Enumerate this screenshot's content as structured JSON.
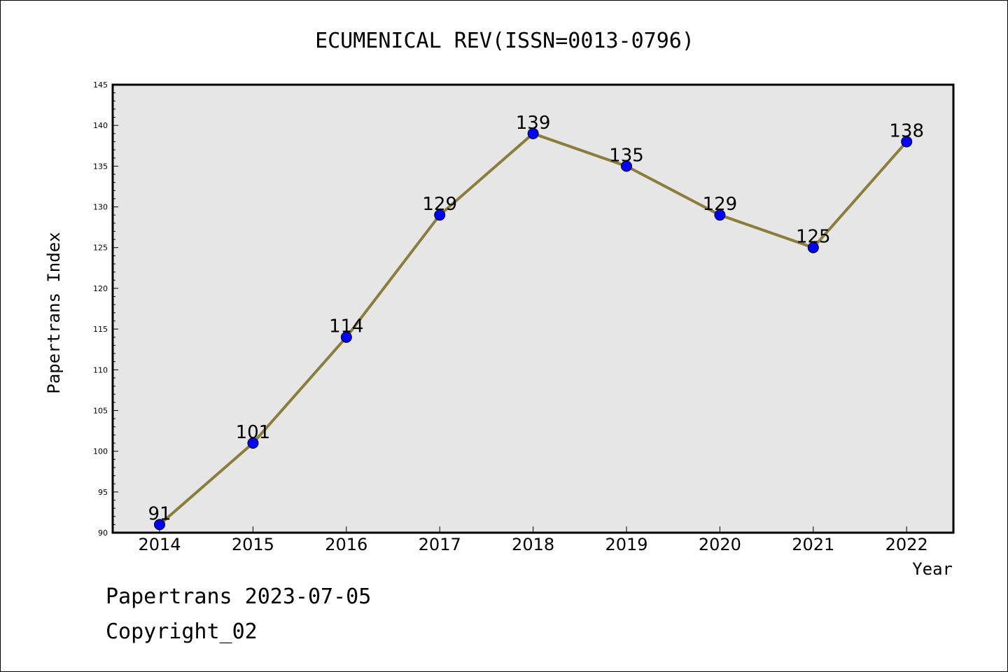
{
  "chart_data": {
    "type": "line",
    "title": "ECUMENICAL REV(ISSN=0013-0796)",
    "xlabel": "Year",
    "ylabel": "Papertrans Index",
    "categories": [
      "2014",
      "2015",
      "2016",
      "2017",
      "2018",
      "2019",
      "2020",
      "2021",
      "2022"
    ],
    "series": [
      {
        "values": [
          91,
          101,
          114,
          129,
          139,
          135,
          129,
          125,
          138
        ]
      }
    ],
    "ylim": [
      90,
      145
    ],
    "yticks": [
      90,
      95,
      100,
      105,
      110,
      115,
      120,
      125,
      130,
      135,
      140,
      145
    ],
    "grid": false,
    "legend": "none",
    "colors": {
      "line": "#8b7d3a",
      "marker": "#0000ff",
      "plot_bg": "#e6e6e6"
    }
  },
  "footer": {
    "date_text": "Papertrans 2023-07-05",
    "copyright_text": "Copyright_02"
  }
}
